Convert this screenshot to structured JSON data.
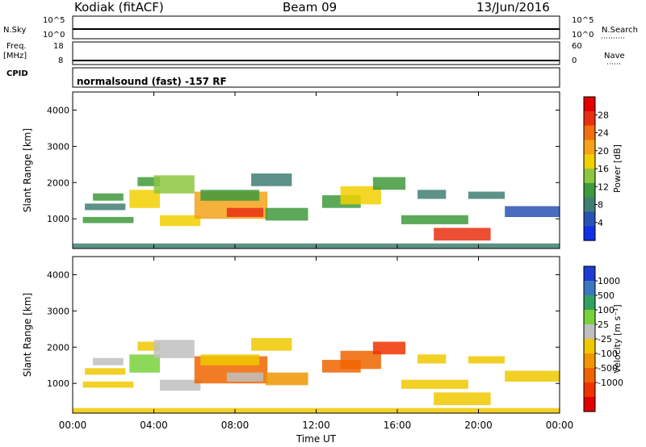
{
  "header": {
    "station": "Kodiak (fitACF)",
    "beam": "Beam 09",
    "date": "13/Jun/2016"
  },
  "strip_labels": {
    "nsky": "N.Sky",
    "nsky_top": "10^5",
    "nsky_bottom": "10^0",
    "nsearch": "N.Search",
    "nsearch_top": "10^5",
    "nsearch_bottom": "10^0",
    "freq_top": "Freq.",
    "freq_unit": "[MHz]",
    "freq_hi": "18",
    "freq_lo": "8",
    "nave": "Nave",
    "nave_hi": "60",
    "nave_lo": "0",
    "cpid": "CPID",
    "program": "normalsound (fast) -157 RF"
  },
  "chart_data": [
    {
      "type": "heatmap",
      "panel": "power",
      "ylabel": "Slant Range [km]",
      "xlabel": "Time UT",
      "x_range_hours": [
        0,
        24
      ],
      "ylim": [
        180,
        4500
      ],
      "y_ticks": [
        1000,
        2000,
        3000,
        4000
      ],
      "colorbar": {
        "label": "Power [dB]",
        "ticks": [
          "4",
          "8",
          "12",
          "16",
          "20",
          "24",
          "28"
        ],
        "colors": [
          "#1430e6",
          "#2a52b4",
          "#3f7f72",
          "#3e9a3c",
          "#8dc63f",
          "#f2d000",
          "#f5a21a",
          "#f07010",
          "#e83010",
          "#e00000"
        ]
      },
      "bands": [
        {
          "t": [
            0.5,
            3.0
          ],
          "r": [
            880,
            1050
          ],
          "v": 10
        },
        {
          "t": [
            0.6,
            2.6
          ],
          "r": [
            1240,
            1420
          ],
          "v": 8
        },
        {
          "t": [
            1.0,
            2.5
          ],
          "r": [
            1500,
            1700
          ],
          "v": 10
        },
        {
          "t": [
            2.8,
            4.3
          ],
          "r": [
            1300,
            1800
          ],
          "v": 18
        },
        {
          "t": [
            3.2,
            4.3
          ],
          "r": [
            1900,
            2150
          ],
          "v": 10
        },
        {
          "t": [
            4.0,
            6.0
          ],
          "r": [
            1700,
            2200
          ],
          "v": 14
        },
        {
          "t": [
            4.3,
            6.3
          ],
          "r": [
            800,
            1100
          ],
          "v": 16
        },
        {
          "t": [
            6.0,
            9.6
          ],
          "r": [
            1000,
            1750
          ],
          "v": 22
        },
        {
          "t": [
            6.3,
            9.2
          ],
          "r": [
            1500,
            1800
          ],
          "v": 12
        },
        {
          "t": [
            7.6,
            9.4
          ],
          "r": [
            1050,
            1300
          ],
          "v": 26
        },
        {
          "t": [
            8.8,
            10.8
          ],
          "r": [
            1900,
            2250
          ],
          "v": 8
        },
        {
          "t": [
            9.5,
            11.6
          ],
          "r": [
            950,
            1300
          ],
          "v": 12
        },
        {
          "t": [
            12.3,
            14.2
          ],
          "r": [
            1300,
            1650
          ],
          "v": 10
        },
        {
          "t": [
            13.2,
            15.2
          ],
          "r": [
            1400,
            1900
          ],
          "v": 18
        },
        {
          "t": [
            14.8,
            16.4
          ],
          "r": [
            1800,
            2150
          ],
          "v": 12
        },
        {
          "t": [
            17.0,
            18.4
          ],
          "r": [
            1550,
            1800
          ],
          "v": 8
        },
        {
          "t": [
            16.2,
            19.5
          ],
          "r": [
            850,
            1100
          ],
          "v": 12
        },
        {
          "t": [
            17.8,
            20.6
          ],
          "r": [
            400,
            750
          ],
          "v": 26
        },
        {
          "t": [
            19.5,
            21.3
          ],
          "r": [
            1550,
            1750
          ],
          "v": 8
        },
        {
          "t": [
            21.3,
            24.0
          ],
          "r": [
            1050,
            1350
          ],
          "v": 6
        },
        {
          "t": [
            0.0,
            24.0
          ],
          "r": [
            180,
            320
          ],
          "v": 8
        }
      ]
    },
    {
      "type": "heatmap",
      "panel": "velocity",
      "ylabel": "Slant Range [km]",
      "xlabel": "Time UT",
      "x_range_hours": [
        0,
        24
      ],
      "ylim": [
        180,
        4500
      ],
      "y_ticks": [
        1000,
        2000,
        3000,
        4000
      ],
      "colorbar": {
        "label": "Velocity [m s⁻¹]",
        "ticks": [
          "1000",
          "500",
          "100",
          "25",
          "-25",
          "-100",
          "-500",
          "-1000"
        ],
        "colors": [
          "#1e3cd2",
          "#3c78c0",
          "#32a060",
          "#78d23c",
          "#c0c0c0",
          "#f0c800",
          "#f09600",
          "#f06400",
          "#f03200",
          "#e00000"
        ]
      },
      "bands": [
        {
          "t": [
            0.5,
            3.0
          ],
          "r": [
            880,
            1050
          ],
          "v": 0
        },
        {
          "t": [
            0.6,
            2.6
          ],
          "r": [
            1240,
            1420
          ],
          "v": 0
        },
        {
          "t": [
            1.0,
            2.5
          ],
          "r": [
            1500,
            1700
          ],
          "v": 60
        },
        {
          "t": [
            2.8,
            4.3
          ],
          "r": [
            1300,
            1800
          ],
          "v": 120
        },
        {
          "t": [
            3.2,
            4.3
          ],
          "r": [
            1900,
            2150
          ],
          "v": 0
        },
        {
          "t": [
            4.0,
            6.0
          ],
          "r": [
            1700,
            2200
          ],
          "v": 60
        },
        {
          "t": [
            4.3,
            6.3
          ],
          "r": [
            800,
            1100
          ],
          "v": 80
        },
        {
          "t": [
            6.0,
            9.6
          ],
          "r": [
            1000,
            1750
          ],
          "v": -150
        },
        {
          "t": [
            6.3,
            9.2
          ],
          "r": [
            1500,
            1800
          ],
          "v": 0
        },
        {
          "t": [
            7.6,
            9.4
          ],
          "r": [
            1050,
            1300
          ],
          "v": 90
        },
        {
          "t": [
            8.8,
            10.8
          ],
          "r": [
            1900,
            2250
          ],
          "v": 0
        },
        {
          "t": [
            9.5,
            11.6
          ],
          "r": [
            950,
            1300
          ],
          "v": -60
        },
        {
          "t": [
            12.3,
            14.2
          ],
          "r": [
            1300,
            1650
          ],
          "v": -200
        },
        {
          "t": [
            13.2,
            15.2
          ],
          "r": [
            1400,
            1900
          ],
          "v": -250
        },
        {
          "t": [
            14.8,
            16.4
          ],
          "r": [
            1800,
            2150
          ],
          "v": -300
        },
        {
          "t": [
            17.0,
            18.4
          ],
          "r": [
            1550,
            1800
          ],
          "v": 0
        },
        {
          "t": [
            16.2,
            19.5
          ],
          "r": [
            850,
            1100
          ],
          "v": 0
        },
        {
          "t": [
            17.8,
            20.6
          ],
          "r": [
            400,
            750
          ],
          "v": 0
        },
        {
          "t": [
            19.5,
            21.3
          ],
          "r": [
            1550,
            1750
          ],
          "v": 0
        },
        {
          "t": [
            21.3,
            24.0
          ],
          "r": [
            1050,
            1350
          ],
          "v": 0
        },
        {
          "t": [
            0.0,
            24.0
          ],
          "r": [
            180,
            320
          ],
          "v": 0
        }
      ]
    }
  ],
  "x_ticks": [
    "00:00",
    "04:00",
    "08:00",
    "12:00",
    "16:00",
    "20:00",
    "00:00"
  ],
  "x_axis_label": "Time UT"
}
